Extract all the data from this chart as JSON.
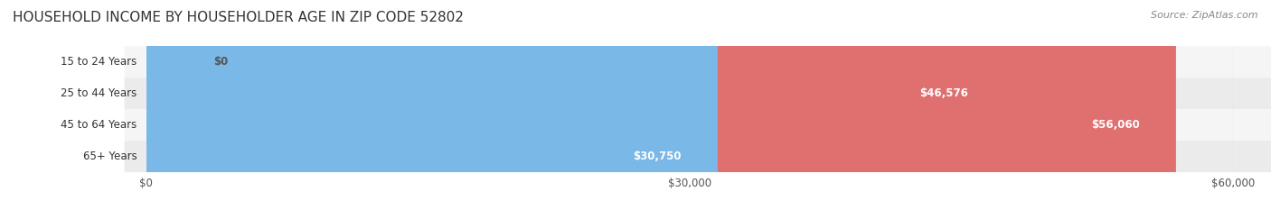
{
  "title": "HOUSEHOLD INCOME BY HOUSEHOLDER AGE IN ZIP CODE 52802",
  "source": "Source: ZipAtlas.com",
  "categories": [
    "15 to 24 Years",
    "25 to 44 Years",
    "45 to 64 Years",
    "65+ Years"
  ],
  "values": [
    0,
    46576,
    56060,
    30750
  ],
  "labels": [
    "$0",
    "$46,576",
    "$56,060",
    "$30,750"
  ],
  "bar_colors": [
    "#f4a0b0",
    "#f5b96e",
    "#e07070",
    "#7ab8e8"
  ],
  "row_bg_colors": [
    "#f5f5f5",
    "#ebebeb",
    "#f5f5f5",
    "#ebebeb"
  ],
  "xlim": [
    0,
    60000
  ],
  "xticks": [
    0,
    30000,
    60000
  ],
  "xticklabels": [
    "$0",
    "$30,000",
    "$60,000"
  ],
  "title_fontsize": 11,
  "source_fontsize": 8,
  "bar_height": 0.55,
  "background_color": "#ffffff",
  "label_inside_color": "#ffffff",
  "label_outside_color": "#555555"
}
